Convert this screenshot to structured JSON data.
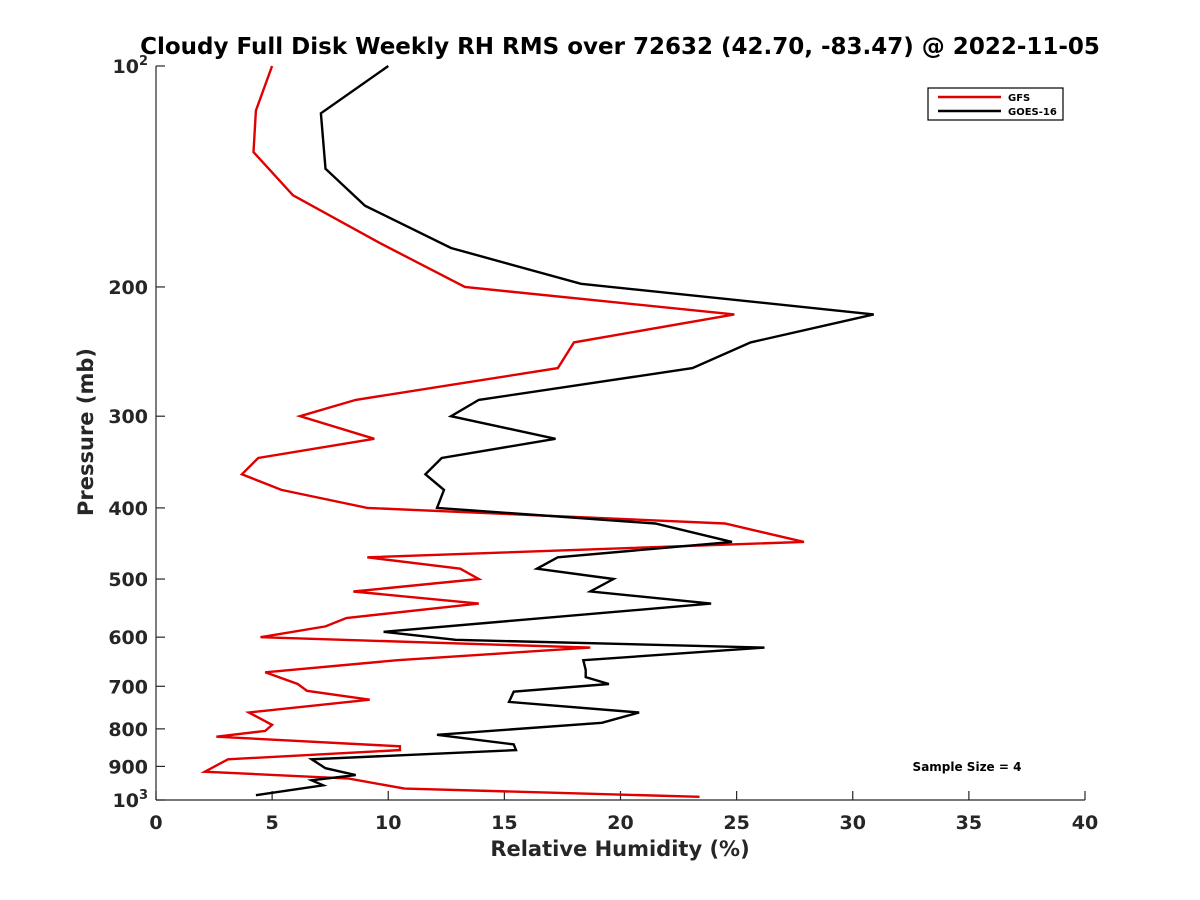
{
  "chart_data": {
    "type": "line",
    "title": "Cloudy Full Disk Weekly RH RMS over 72632 (42.70, -83.47) @ 2022-11-05",
    "xlabel": "Relative Humidity (%)",
    "ylabel": "Pressure (mb)",
    "xlim": [
      0,
      40
    ],
    "ylim": [
      100,
      1000
    ],
    "y_scale": "log",
    "y_reversed": true,
    "grid": false,
    "x_ticks": [
      {
        "value": 0,
        "label": "0"
      },
      {
        "value": 5,
        "label": "5"
      },
      {
        "value": 10,
        "label": "10"
      },
      {
        "value": 15,
        "label": "15"
      },
      {
        "value": 20,
        "label": "20"
      },
      {
        "value": 25,
        "label": "25"
      },
      {
        "value": 30,
        "label": "30"
      },
      {
        "value": 35,
        "label": "35"
      },
      {
        "value": 40,
        "label": "40"
      }
    ],
    "y_ticks": [
      {
        "value": 100,
        "label": "10",
        "sup": "2"
      },
      {
        "value": 200,
        "label": "200",
        "sup": ""
      },
      {
        "value": 300,
        "label": "300",
        "sup": ""
      },
      {
        "value": 400,
        "label": "400",
        "sup": ""
      },
      {
        "value": 500,
        "label": "500",
        "sup": ""
      },
      {
        "value": 600,
        "label": "600",
        "sup": ""
      },
      {
        "value": 700,
        "label": "700",
        "sup": ""
      },
      {
        "value": 800,
        "label": "800",
        "sup": ""
      },
      {
        "value": 900,
        "label": "900",
        "sup": ""
      },
      {
        "value": 1000,
        "label": "10",
        "sup": "3"
      }
    ],
    "legend_position": "top-right",
    "annotation": "Sample Size = 4",
    "series": [
      {
        "name": "GFS",
        "color": "#e00000",
        "points": [
          [
            5.0,
            100
          ],
          [
            4.3,
            115
          ],
          [
            4.2,
            131
          ],
          [
            5.9,
            150
          ],
          [
            9.6,
            174
          ],
          [
            13.3,
            200
          ],
          [
            24.9,
            218
          ],
          [
            18.0,
            238
          ],
          [
            17.3,
            258
          ],
          [
            8.6,
            285
          ],
          [
            6.2,
            300
          ],
          [
            9.4,
            322
          ],
          [
            4.4,
            342
          ],
          [
            3.7,
            360
          ],
          [
            5.4,
            378
          ],
          [
            9.1,
            400
          ],
          [
            24.5,
            420
          ],
          [
            27.9,
            445
          ],
          [
            9.1,
            467
          ],
          [
            13.1,
            484
          ],
          [
            13.9,
            500
          ],
          [
            8.5,
            520
          ],
          [
            13.9,
            540
          ],
          [
            8.2,
            565
          ],
          [
            7.3,
            580
          ],
          [
            4.5,
            600
          ],
          [
            18.7,
            620
          ],
          [
            10.4,
            645
          ],
          [
            4.7,
            670
          ],
          [
            6.1,
            695
          ],
          [
            6.5,
            710
          ],
          [
            9.2,
            730
          ],
          [
            4.0,
            760
          ],
          [
            4.5,
            775
          ],
          [
            5.0,
            790
          ],
          [
            4.7,
            805
          ],
          [
            2.6,
            820
          ],
          [
            10.5,
            845
          ],
          [
            10.5,
            855
          ],
          [
            3.1,
            880
          ],
          [
            2.1,
            915
          ],
          [
            8.3,
            935
          ],
          [
            10.7,
            965
          ],
          [
            23.4,
            990
          ]
        ]
      },
      {
        "name": "GOES-16",
        "color": "#000000",
        "points": [
          [
            10.0,
            100
          ],
          [
            7.1,
            116
          ],
          [
            7.3,
            138
          ],
          [
            9.0,
            155
          ],
          [
            12.7,
            177
          ],
          [
            18.3,
            198
          ],
          [
            30.9,
            218
          ],
          [
            25.6,
            238
          ],
          [
            23.1,
            258
          ],
          [
            13.9,
            285
          ],
          [
            12.7,
            300
          ],
          [
            17.2,
            322
          ],
          [
            12.3,
            342
          ],
          [
            11.6,
            360
          ],
          [
            12.4,
            378
          ],
          [
            12.1,
            400
          ],
          [
            21.5,
            420
          ],
          [
            24.8,
            445
          ],
          [
            17.3,
            467
          ],
          [
            16.4,
            484
          ],
          [
            19.7,
            500
          ],
          [
            18.7,
            520
          ],
          [
            23.9,
            540
          ],
          [
            9.8,
            590
          ],
          [
            12.9,
            605
          ],
          [
            26.2,
            620
          ],
          [
            18.4,
            645
          ],
          [
            18.5,
            665
          ],
          [
            18.5,
            680
          ],
          [
            19.5,
            695
          ],
          [
            15.4,
            712
          ],
          [
            15.2,
            735
          ],
          [
            20.8,
            760
          ],
          [
            19.2,
            785
          ],
          [
            12.1,
            815
          ],
          [
            15.4,
            840
          ],
          [
            15.5,
            855
          ],
          [
            6.7,
            880
          ],
          [
            7.3,
            905
          ],
          [
            8.6,
            925
          ],
          [
            6.7,
            940
          ],
          [
            7.2,
            955
          ],
          [
            4.3,
            985
          ]
        ]
      }
    ]
  }
}
